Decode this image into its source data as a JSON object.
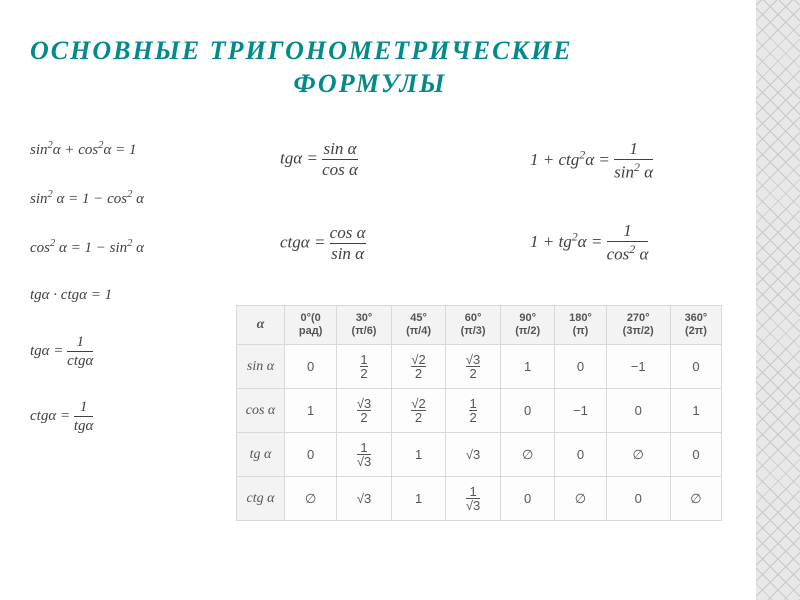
{
  "title": {
    "line1": "ОСНОВНЫЕ ТРИГОНОМЕТРИЧЕСКИЕ",
    "line2": "ФОРМУЛЫ"
  },
  "colors": {
    "title": "#008a8a",
    "text": "#404040",
    "table_border": "#d8d8d8",
    "table_header_bg": "#f3f3f3",
    "pattern_line": "#c8c8c8",
    "pattern_bg": "#e8e8e8"
  },
  "formulas_left": {
    "f1": {
      "lhs": "sin",
      "exp1": "2",
      "var1": "α",
      "op1": "+",
      "rhs": "cos",
      "exp2": "2",
      "var2": "α",
      "eq": "= 1"
    },
    "f2": {
      "txt": "sin² α = 1 − cos² α"
    },
    "f3": {
      "txt": "cos² α = 1 − sin² α"
    },
    "f4": {
      "txt": "tgα · ctgα = 1"
    },
    "f5": {
      "lhs": "tgα =",
      "num": "1",
      "den": "ctgα"
    },
    "f6": {
      "lhs": "ctgα =",
      "num": "1",
      "den": "tgα"
    }
  },
  "formulas_mid": {
    "f1": {
      "lhs": "tgα =",
      "num": "sin α",
      "den": "cos α"
    },
    "f2": {
      "lhs": "ctgα =",
      "num": "cos α",
      "den": "sin α"
    }
  },
  "formulas_right": {
    "f1": {
      "lhs": "1 + ctg²α =",
      "num": "1",
      "den": "sin² α"
    },
    "f2": {
      "lhs": "1 + tg²α =",
      "num": "1",
      "den": "cos² α"
    }
  },
  "table": {
    "type": "table",
    "columns": [
      {
        "label": "α"
      },
      {
        "deg": "0°(0",
        "rad": "рад)"
      },
      {
        "deg": "30°",
        "rad": "(π/6)"
      },
      {
        "deg": "45°",
        "rad": "(π/4)"
      },
      {
        "deg": "60°",
        "rad": "(π/3)"
      },
      {
        "deg": "90°",
        "rad": "(π/2)"
      },
      {
        "deg": "180°",
        "rad": "(π)"
      },
      {
        "deg": "270°",
        "rad": "(3π/2)"
      },
      {
        "deg": "360°",
        "rad": "(2π)"
      }
    ],
    "rows": [
      {
        "fn": "sin α",
        "cells": [
          "0",
          {
            "num": "1",
            "den": "2"
          },
          {
            "num": "√2",
            "den": "2"
          },
          {
            "num": "√3",
            "den": "2"
          },
          "1",
          "0",
          "−1",
          "0"
        ]
      },
      {
        "fn": "cos α",
        "cells": [
          "1",
          {
            "num": "√3",
            "den": "2"
          },
          {
            "num": "√2",
            "den": "2"
          },
          {
            "num": "1",
            "den": "2"
          },
          "0",
          "−1",
          "0",
          "1"
        ]
      },
      {
        "fn": "tg α",
        "cells": [
          "0",
          {
            "num": "1",
            "den": "√3"
          },
          "1",
          "√3",
          "∅",
          "0",
          "∅",
          "0"
        ]
      },
      {
        "fn": "ctg α",
        "cells": [
          "∅",
          "√3",
          "1",
          {
            "num": "1",
            "den": "√3"
          },
          "0",
          "∅",
          "0",
          "∅"
        ]
      }
    ]
  }
}
